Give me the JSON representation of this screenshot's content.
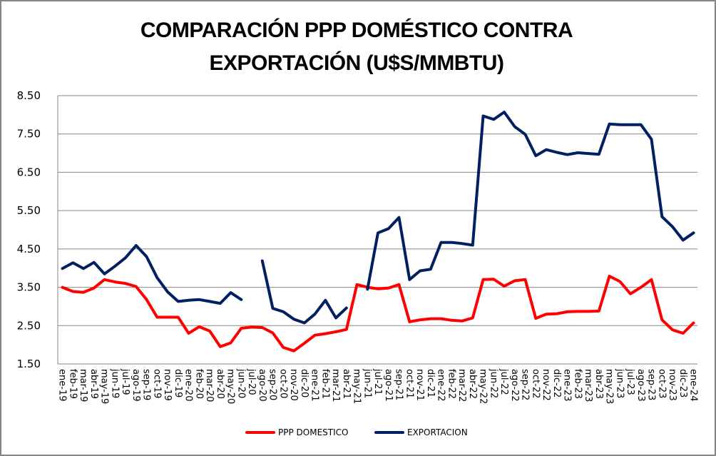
{
  "chart_data": {
    "type": "line",
    "title": "COMPARACIÓN PPP DOMÉSTICO CONTRA EXPORTACIÓN (U$S/MMBTU)",
    "title_lines": [
      "COMPARACIÓN PPP DOMÉSTICO CONTRA",
      "EXPORTACIÓN (U$S/MMBTU)"
    ],
    "xlabel": "",
    "ylabel": "",
    "ylim": [
      1.5,
      8.5
    ],
    "yticks": [
      "8.50",
      "7.50",
      "6.50",
      "5.50",
      "4.50",
      "3.50",
      "2.50",
      "1.50"
    ],
    "ytick_values": [
      8.5,
      7.5,
      6.5,
      5.5,
      4.5,
      3.5,
      2.5,
      1.5
    ],
    "grid": true,
    "legend_position": "bottom",
    "categories": [
      "ene-19",
      "feb-19",
      "mar-19",
      "abr-19",
      "may-19",
      "jun-19",
      "jul-19",
      "ago-19",
      "sep-19",
      "oct-19",
      "nov-19",
      "dic-19",
      "ene-20",
      "feb-20",
      "mar-20",
      "abr-20",
      "may-20",
      "jun-20",
      "jul-20",
      "ago-20",
      "sep-20",
      "oct-20",
      "nov-20",
      "dic-20",
      "ene-21",
      "feb-21",
      "mar-21",
      "abr-21",
      "may-21",
      "jun-21",
      "jul-21",
      "ago-21",
      "sep-21",
      "oct-21",
      "nov-21",
      "dic-21",
      "ene-22",
      "feb-22",
      "mar-22",
      "abr-22",
      "may-22",
      "jun-22",
      "jul-22",
      "ago-22",
      "sep-22",
      "oct-22",
      "nov-22",
      "dic-22",
      "ene-23",
      "feb-23",
      "mar-23",
      "abr-23",
      "may-23",
      "jun-23",
      "jul-23",
      "ago-23",
      "sep-23",
      "oct-23",
      "nov-23",
      "dic-23",
      "ene-24"
    ],
    "series": [
      {
        "name": "PPP DOMESTICO",
        "color": "#ff0000",
        "values": [
          3.5,
          3.39,
          3.37,
          3.48,
          3.7,
          3.64,
          3.6,
          3.52,
          3.18,
          2.72,
          2.72,
          2.72,
          2.3,
          2.47,
          2.36,
          1.95,
          2.05,
          2.43,
          2.46,
          2.45,
          2.31,
          1.93,
          1.84,
          2.04,
          2.25,
          2.29,
          2.34,
          2.4,
          3.57,
          3.5,
          3.46,
          3.48,
          3.57,
          2.6,
          2.65,
          2.68,
          2.68,
          2.64,
          2.62,
          2.7,
          3.7,
          3.71,
          3.53,
          3.67,
          3.7,
          2.69,
          2.8,
          2.81,
          2.86,
          2.87,
          2.87,
          2.88,
          3.79,
          3.65,
          3.33,
          3.5,
          3.7,
          2.65,
          2.39,
          2.3,
          2.57
        ]
      },
      {
        "name": "EXPORTACION",
        "color": "#002060",
        "values": [
          3.99,
          4.14,
          3.99,
          4.15,
          3.85,
          4.05,
          4.27,
          4.59,
          4.3,
          3.75,
          3.38,
          3.13,
          3.16,
          3.18,
          3.13,
          3.08,
          3.36,
          3.18,
          null,
          4.19,
          2.95,
          2.86,
          2.67,
          2.57,
          2.8,
          3.16,
          2.7,
          2.96,
          null,
          3.45,
          4.92,
          5.03,
          5.32,
          3.7,
          3.93,
          3.97,
          4.67,
          4.67,
          4.64,
          4.6,
          7.97,
          7.88,
          8.07,
          7.69,
          7.49,
          6.93,
          7.09,
          7.02,
          6.96,
          7.01,
          6.99,
          6.97,
          7.76,
          7.74,
          7.74,
          7.74,
          7.36,
          5.34,
          5.08,
          4.73,
          4.92
        ]
      }
    ]
  }
}
